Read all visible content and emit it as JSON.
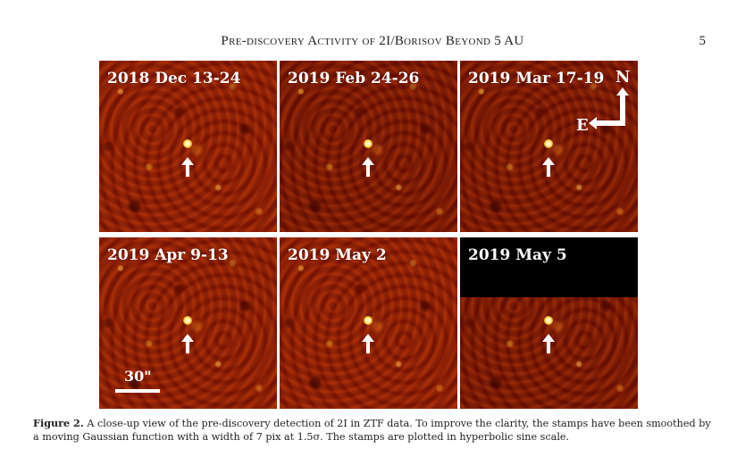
{
  "running_head": "Pre-discovery Activity of 2I/Borisov Beyond 5 AU",
  "page_number": "5",
  "figure": {
    "panels": [
      {
        "label": "2018 Dec 13-24"
      },
      {
        "label": "2019 Feb 24-26"
      },
      {
        "label": "2019 Mar 17-19"
      },
      {
        "label": "2019 Apr 9-13"
      },
      {
        "label": "2019 May 2"
      },
      {
        "label": "2019 May 5"
      }
    ],
    "compass": {
      "north": "N",
      "east": "E"
    },
    "scale_bar": "30\""
  },
  "caption": {
    "label": "Figure 2.",
    "text": "A close-up view of the pre-discovery detection of 2I in ZTF data. To improve the clarity, the stamps have been smoothed by a moving Gaussian function with a width of 7 pix at 1.5σ. The stamps are plotted in hyperbolic sine scale."
  },
  "colors": {
    "stamp_base": "#9a1e04",
    "source_glow": "#ffcf3a",
    "annotation": "#ffffff",
    "mask": "#000000"
  }
}
